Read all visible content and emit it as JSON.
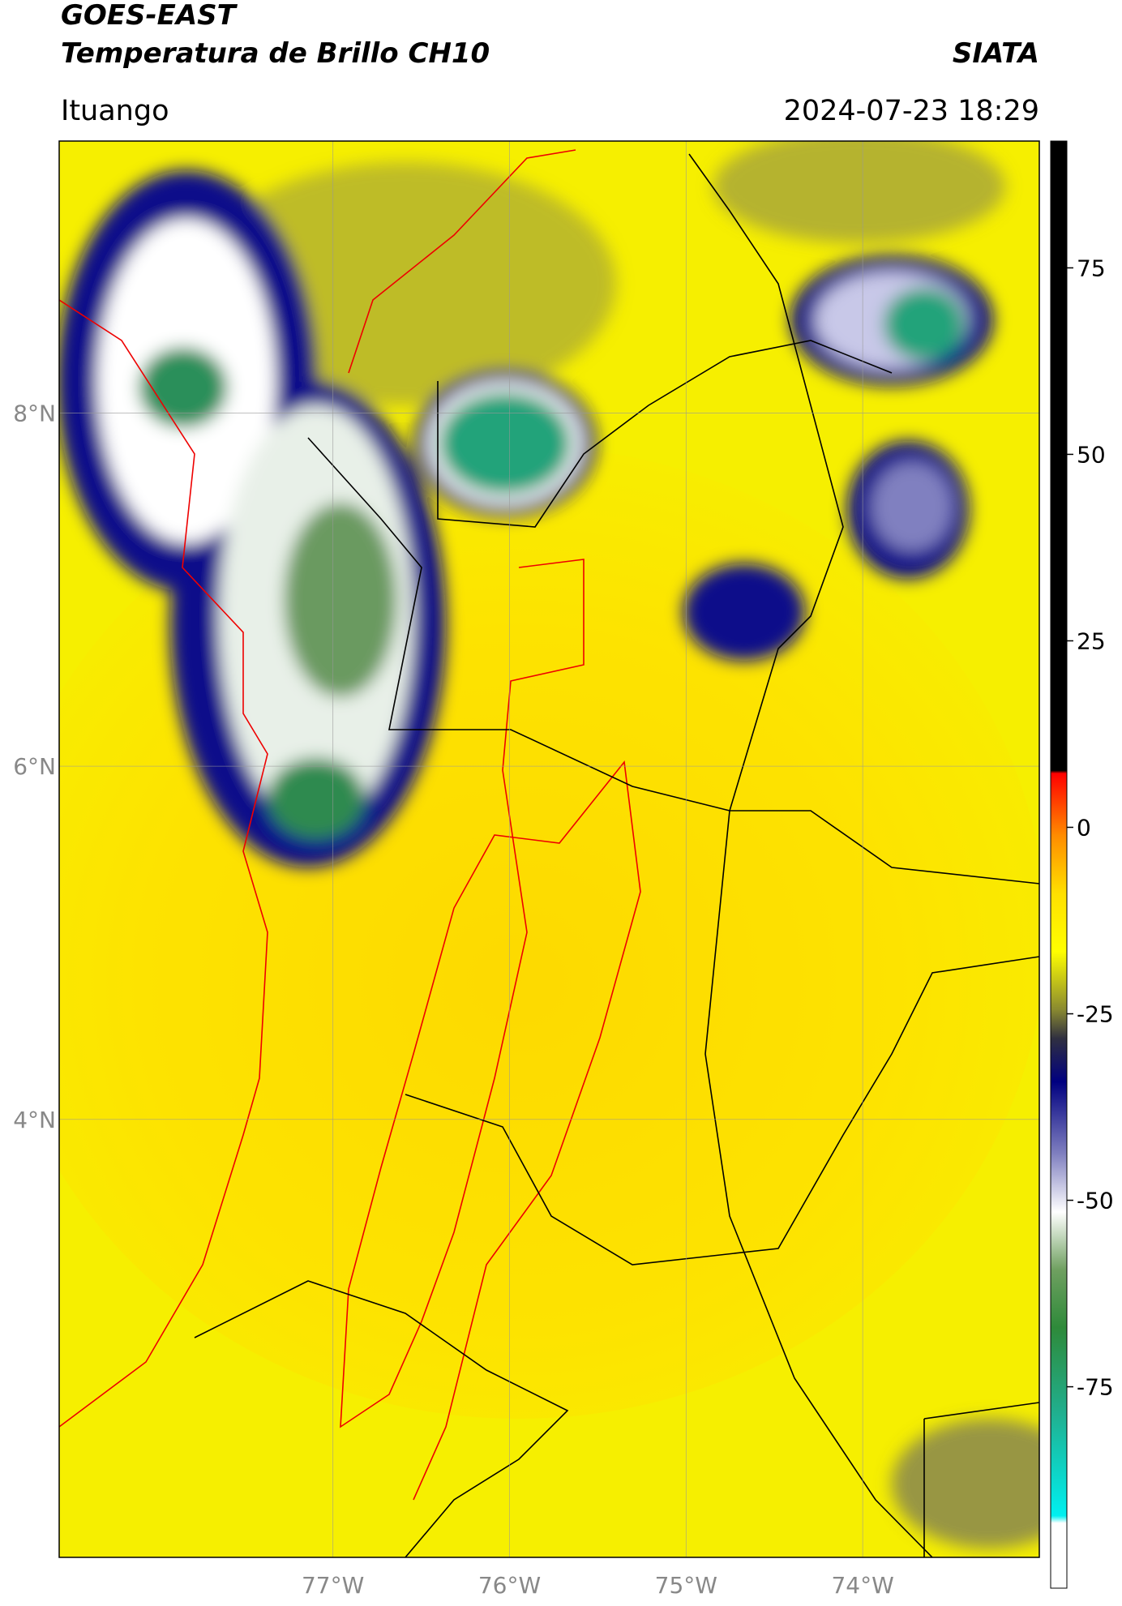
{
  "chart_data": {
    "type": "map",
    "title": "GOES-EAST",
    "subtitle": "Temperatura de Brillo CH10",
    "source": "SIATA",
    "location": "Ituango",
    "datetime": "2024-07-23 18:29",
    "xlim": [
      -78.55,
      -73.0
    ],
    "ylim": [
      1.52,
      9.54
    ],
    "xticks": [
      {
        "value": -77,
        "label": "77°W"
      },
      {
        "value": -76,
        "label": "76°W"
      },
      {
        "value": -75,
        "label": "75°W"
      },
      {
        "value": -74,
        "label": "74°W"
      }
    ],
    "yticks": [
      {
        "value": 8,
        "label": "8°N"
      },
      {
        "value": 6,
        "label": "6°N"
      },
      {
        "value": 4,
        "label": "4°N"
      }
    ],
    "grid": true,
    "clim": [
      -102,
      92
    ],
    "cticks": [
      75,
      50,
      25,
      0,
      -25,
      -50,
      -75
    ]
  }
}
